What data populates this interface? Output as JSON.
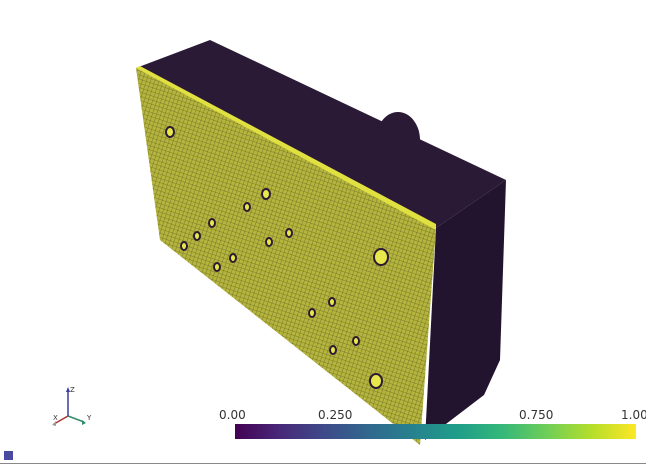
{
  "colorbar": {
    "ticks": [
      "0.00",
      "0.250",
      "0.750",
      "1.00"
    ],
    "colors": [
      "#440154",
      "#482878",
      "#3e4a89",
      "#31688e",
      "#26828e",
      "#1f9e89",
      "#35b779",
      "#6ece58",
      "#b5de2b",
      "#fde725"
    ]
  },
  "axes": {
    "x": "X",
    "y": "Y",
    "z": "Z"
  },
  "model": {
    "face_color": "#b2b23c",
    "body_color": "#2a1a36",
    "edge_color": "#d9d93a"
  }
}
